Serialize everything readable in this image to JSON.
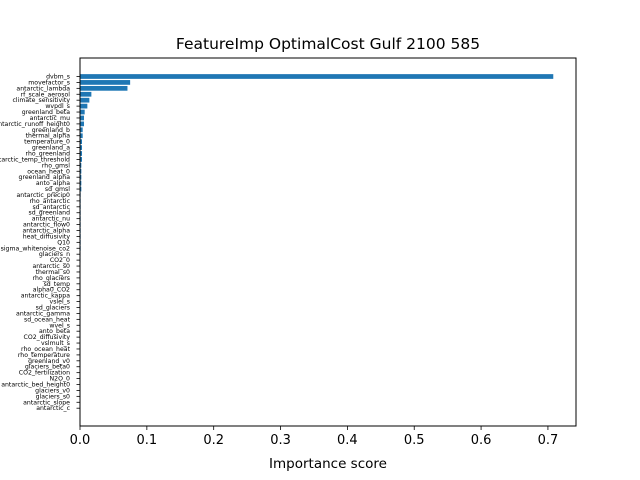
{
  "chart_data": {
    "type": "bar",
    "orientation": "horizontal",
    "title": "FeatureImp OptimalCost Gulf 2100 585",
    "xlabel": "Importance score",
    "ylabel": "",
    "xlim": [
      0,
      0.742
    ],
    "xticks": [
      0.0,
      0.1,
      0.2,
      0.3,
      0.4,
      0.5,
      0.6,
      0.7
    ],
    "xtick_labels": [
      "0.0",
      "0.1",
      "0.2",
      "0.3",
      "0.4",
      "0.5",
      "0.6",
      "0.7"
    ],
    "grid": false,
    "bar_color": "#1f77b4",
    "categories": [
      "dvbm_s",
      "movefactor_s",
      "antarctic_lambda",
      "rf_scale_aerosol",
      "climate_sensitivity",
      "wvpdl_s",
      "greenland_beta",
      "antarctic_mu",
      "antarctic_runoff_height0",
      "greenland_b",
      "thermal_alpha",
      "temperature_0",
      "greenland_a",
      "rho_greenland",
      "antarctic_temp_threshold",
      "rho_gmsl",
      "ocean_heat_0",
      "greenland_alpha",
      "anto_alpha",
      "sd_gmsl",
      "antarctic_precip0",
      "rho_antarctic",
      "sd_antarctic",
      "sd_greenland",
      "antarctic_nu",
      "antarctic_flow0",
      "antarctic_alpha",
      "heat_diffusivity",
      "Q10",
      "sigma_whitenoise_co2",
      "glaciers_n",
      "CO2_0",
      "antarctic_s0",
      "thermal_s0",
      "rho_glaciers",
      "sd_temp",
      "alpha0_CO2",
      "antarctic_kappa",
      "vslel_s",
      "sd_glaciers",
      "antarctic_gamma",
      "sd_ocean_heat",
      "wvel_s",
      "anto_beta",
      "CO2_diffusivity",
      "vslmult_s",
      "rho_ocean_heat",
      "rho_temperature",
      "greenland_v0",
      "glaciers_beta0",
      "CO2_fertilization",
      "N2O_0",
      "antarctic_bed_height0",
      "glaciers_v0",
      "glaciers_s0",
      "antarctic_slope",
      "antarctic_c"
    ],
    "values": [
      0.708,
      0.075,
      0.071,
      0.017,
      0.014,
      0.011,
      0.007,
      0.006,
      0.006,
      0.004,
      0.004,
      0.003,
      0.003,
      0.003,
      0.003,
      0.002,
      0.002,
      0.002,
      0.002,
      0.002,
      0.001,
      0.001,
      0.001,
      0.001,
      0.001,
      0.001,
      0.001,
      0.001,
      0.001,
      0.001,
      0.0008,
      0.0008,
      0.0007,
      0.0007,
      0.0006,
      0.0006,
      0.0005,
      0.0005,
      0.0005,
      0.0004,
      0.0004,
      0.0004,
      0.0003,
      0.0003,
      0.0003,
      0.0003,
      0.0002,
      0.0002,
      0.0002,
      0.0002,
      0.0001,
      0.0001,
      0.0001,
      0.0001,
      0.0001,
      0.0001,
      0.0
    ]
  }
}
